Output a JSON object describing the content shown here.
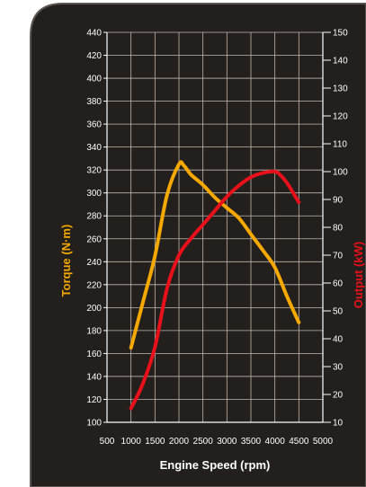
{
  "chart_data": {
    "type": "line",
    "xlabel": "Engine Speed (rpm)",
    "ylabel_left": "Torque (N·m)",
    "ylabel_right": "Output (kW)",
    "xlim": [
      500,
      5000
    ],
    "ylim_left": [
      100,
      440
    ],
    "ylim_right": [
      10,
      150
    ],
    "x_ticks": [
      "500",
      "1000",
      "1500",
      "2000",
      "2500",
      "3000",
      "3500",
      "4000",
      "4500",
      "5000"
    ],
    "y_left_ticks": [
      "100",
      "120",
      "140",
      "160",
      "180",
      "200",
      "220",
      "240",
      "260",
      "280",
      "300",
      "320",
      "340",
      "360",
      "380",
      "400",
      "420",
      "440"
    ],
    "y_right_ticks": [
      "10",
      "20",
      "30",
      "40",
      "50",
      "60",
      "70",
      "80",
      "90",
      "100",
      "110",
      "120",
      "130",
      "140",
      "150"
    ],
    "grid": true,
    "series": [
      {
        "axis": "left",
        "color": "#f5a800",
        "x": [
          1000,
          1250,
          1500,
          1750,
          2000,
          2100,
          2250,
          2500,
          2750,
          3000,
          3250,
          3500,
          3750,
          4000,
          4250,
          4500
        ],
        "y": [
          165,
          205,
          245,
          298,
          325,
          324,
          316,
          307,
          296,
          287,
          278,
          264,
          250,
          235,
          210,
          187
        ]
      },
      {
        "axis": "right",
        "color": "#e8101a",
        "x": [
          1000,
          1250,
          1500,
          1750,
          2000,
          2250,
          2500,
          2750,
          3000,
          3250,
          3500,
          3750,
          4000,
          4100,
          4250,
          4500
        ],
        "y": [
          15,
          24,
          37,
          58,
          70,
          76,
          81,
          86,
          91,
          95,
          98,
          99.5,
          100,
          99,
          96,
          89
        ]
      }
    ]
  },
  "colors": {
    "panel_bg": "#231f1c",
    "panel_border": "#5a5550",
    "grid": "#bfb8b0",
    "torque_title": "#f5a800",
    "output_title": "#e8101a",
    "right_ticks": "#e8a070"
  }
}
